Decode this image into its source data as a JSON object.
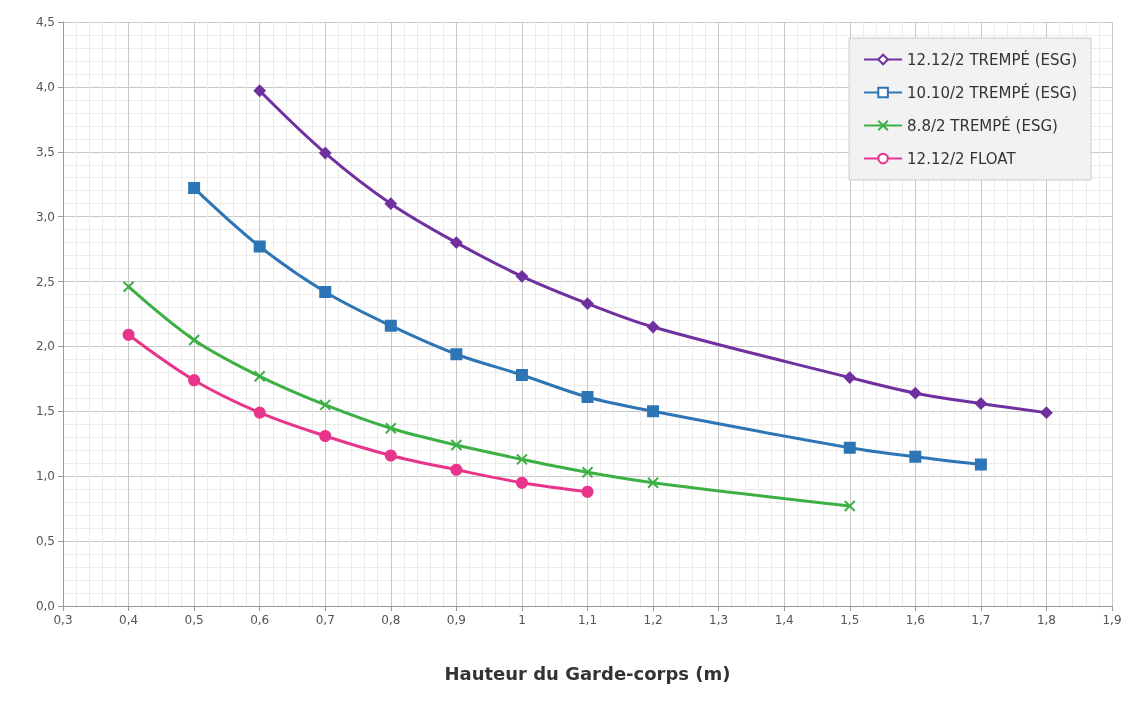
{
  "chart_data": {
    "type": "line",
    "xlabel": "Hauteur du Garde-corps (m)",
    "xlim": [
      0.3,
      1.9
    ],
    "xticks": [
      {
        "value": 0.3,
        "label": "0,3"
      },
      {
        "value": 0.4,
        "label": "0,4"
      },
      {
        "value": 0.5,
        "label": "0,5"
      },
      {
        "value": 0.6,
        "label": "0,6"
      },
      {
        "value": 0.7,
        "label": "0,7"
      },
      {
        "value": 0.8,
        "label": "0,8"
      },
      {
        "value": 0.9,
        "label": "0,9"
      },
      1,
      {
        "value": 1.1,
        "label": "1,1"
      },
      {
        "value": 1.2,
        "label": "1,2"
      },
      {
        "value": 1.3,
        "label": "1,3"
      },
      {
        "value": 1.4,
        "label": "1,4"
      },
      {
        "value": 1.5,
        "label": "1,5"
      },
      {
        "value": 1.6,
        "label": "1,6"
      },
      {
        "value": 1.7,
        "label": "1,7"
      },
      {
        "value": 1.8,
        "label": "1,8"
      },
      {
        "value": 1.9,
        "label": "1,9"
      }
    ],
    "ylim": [
      0,
      4.5
    ],
    "yticks": [
      {
        "value": 0,
        "label": "0,0"
      },
      {
        "value": 0.5,
        "label": "0,5"
      },
      {
        "value": 1,
        "label": "1,0"
      },
      {
        "value": 1.5,
        "label": "1,5"
      },
      {
        "value": 2,
        "label": "2,0"
      },
      {
        "value": 2.5,
        "label": "2,5"
      },
      {
        "value": 3,
        "label": "3,0"
      },
      {
        "value": 3.5,
        "label": "3,5"
      },
      {
        "value": 4,
        "label": "4,0"
      },
      {
        "value": 4.5,
        "label": "4,5"
      }
    ],
    "grid": true,
    "legend": "top right",
    "series": [
      {
        "name": "12.12/2 TREMPÉ (ESG)",
        "color": "#7030a0",
        "marker": "diamond",
        "x": [
          0.6,
          0.7,
          0.8,
          0.9,
          1.0,
          1.1,
          1.2,
          1.5,
          1.6,
          1.7,
          1.8
        ],
        "values": [
          3.97,
          3.49,
          3.1,
          2.8,
          2.54,
          2.33,
          2.15,
          1.76,
          1.64,
          1.56,
          1.49
        ]
      },
      {
        "name": "10.10/2 TREMPÉ (ESG)",
        "color": "#2e75b6",
        "marker": "square",
        "x": [
          0.5,
          0.6,
          0.7,
          0.8,
          0.9,
          1.0,
          1.1,
          1.2,
          1.5,
          1.6,
          1.7
        ],
        "values": [
          3.22,
          2.77,
          2.42,
          2.16,
          1.94,
          1.78,
          1.61,
          1.5,
          1.22,
          1.15,
          1.09
        ]
      },
      {
        "name": "8.8/2 TREMPÉ (ESG)",
        "color": "#3cb043",
        "marker": "cross",
        "x": [
          0.4,
          0.5,
          0.6,
          0.7,
          0.8,
          0.9,
          1.0,
          1.1,
          1.2,
          1.5
        ],
        "values": [
          2.46,
          2.05,
          1.77,
          1.55,
          1.37,
          1.24,
          1.13,
          1.03,
          0.95,
          0.77
        ]
      },
      {
        "name": "12.12/2 FLOAT",
        "color": "#e8358b",
        "marker": "circle",
        "x": [
          0.4,
          0.5,
          0.6,
          0.7,
          0.8,
          0.9,
          1.0,
          1.1
        ],
        "values": [
          2.09,
          1.74,
          1.49,
          1.31,
          1.16,
          1.05,
          0.95,
          0.88
        ]
      }
    ]
  }
}
